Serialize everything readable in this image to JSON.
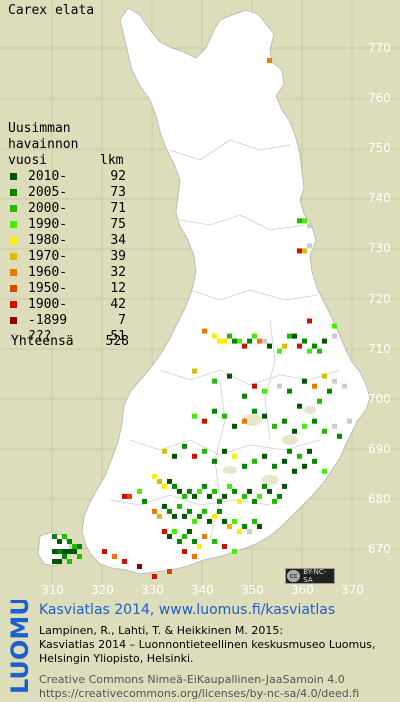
{
  "species": "Carex elata",
  "legend": {
    "header_line1": "Uusimman",
    "header_line2": "havainnon",
    "header_vuosi": "vuosi",
    "header_lkm": "lkm",
    "rows": [
      {
        "label": "2010-",
        "count": "92",
        "color": "#005500"
      },
      {
        "label": "2005-",
        "count": "73",
        "color": "#008800"
      },
      {
        "label": "2000-",
        "count": "71",
        "color": "#22bb00"
      },
      {
        "label": "1990-",
        "count": "75",
        "color": "#44ee00"
      },
      {
        "label": "1980-",
        "count": "34",
        "color": "#ffee00"
      },
      {
        "label": "1970-",
        "count": "39",
        "color": "#ddbb00"
      },
      {
        "label": "1960-",
        "count": "32",
        "color": "#ee7700"
      },
      {
        "label": "1950-",
        "count": "12",
        "color": "#dd4400"
      },
      {
        "label": "1900-",
        "count": "42",
        "color": "#cc1100"
      },
      {
        "label": "-1899",
        "count": "7",
        "color": "#880000"
      },
      {
        "label": "???",
        "count": "51",
        "color": "#cccccc"
      }
    ],
    "total_label": "Yhteensä",
    "total_count": "528"
  },
  "axis": {
    "y_ticks": [
      "770",
      "760",
      "750",
      "740",
      "730",
      "720",
      "710",
      "700",
      "690",
      "680",
      "670"
    ],
    "x_ticks": [
      "310",
      "320",
      "330",
      "340",
      "350",
      "360",
      "370"
    ]
  },
  "cc_badge": "BY-NC-SA",
  "logo_text": "LUOMUS",
  "footer": {
    "line1": "Kasviatlas 2014, www.luomus.fi/kasviatlas",
    "line2": "Lampinen, R., Lahti, T. & Heikkinen M. 2015:",
    "line3": "Kasviatlas 2014 – Luonnontieteellinen keskusmuseo Luomus,",
    "line4": "Helsingin Yliopisto, Helsinki.",
    "line5": "Creative Commons Nimeä-EiKaupallinen-JaaSamoin 4.0",
    "line6": "https://creativecommons.org/licenses/by-nc-sa/4.0/deed.fi"
  },
  "colors": {
    "background": "#ddddbb",
    "land": "#ffffff",
    "footer_title": "#1a5fcc",
    "logo": "#1a5fcc"
  },
  "records": [
    {
      "e": 353,
      "n": 768,
      "c": 6
    },
    {
      "e": 359,
      "n": 736,
      "c": 2
    },
    {
      "e": 360,
      "n": 736,
      "c": 3
    },
    {
      "e": 361,
      "n": 735,
      "c": 10
    },
    {
      "e": 359,
      "n": 730,
      "c": 8
    },
    {
      "e": 360,
      "n": 730,
      "c": 5
    },
    {
      "e": 361,
      "n": 731,
      "c": 10
    },
    {
      "e": 340,
      "n": 714,
      "c": 6
    },
    {
      "e": 342,
      "n": 713,
      "c": 4
    },
    {
      "e": 343,
      "n": 712,
      "c": 4
    },
    {
      "e": 344,
      "n": 712,
      "c": 4
    },
    {
      "e": 345,
      "n": 713,
      "c": 2
    },
    {
      "e": 346,
      "n": 712,
      "c": 1
    },
    {
      "e": 347,
      "n": 712,
      "c": 3
    },
    {
      "e": 348,
      "n": 711,
      "c": 8
    },
    {
      "e": 349,
      "n": 712,
      "c": 1
    },
    {
      "e": 350,
      "n": 713,
      "c": 3
    },
    {
      "e": 351,
      "n": 712,
      "c": 6
    },
    {
      "e": 352,
      "n": 712,
      "c": 10
    },
    {
      "e": 353,
      "n": 711,
      "c": 0
    },
    {
      "e": 355,
      "n": 710,
      "c": 3
    },
    {
      "e": 356,
      "n": 711,
      "c": 5
    },
    {
      "e": 357,
      "n": 713,
      "c": 2
    },
    {
      "e": 358,
      "n": 713,
      "c": 0
    },
    {
      "e": 359,
      "n": 711,
      "c": 8
    },
    {
      "e": 360,
      "n": 712,
      "c": 1
    },
    {
      "e": 361,
      "n": 710,
      "c": 3
    },
    {
      "e": 362,
      "n": 711,
      "c": 1
    },
    {
      "e": 363,
      "n": 710,
      "c": 2
    },
    {
      "e": 364,
      "n": 712,
      "c": 0
    },
    {
      "e": 366,
      "n": 713,
      "c": 10
    },
    {
      "e": 361,
      "n": 716,
      "c": 8
    },
    {
      "e": 366,
      "n": 715,
      "c": 3
    },
    {
      "e": 338,
      "n": 706,
      "c": 5
    },
    {
      "e": 342,
      "n": 704,
      "c": 2
    },
    {
      "e": 345,
      "n": 705,
      "c": 0
    },
    {
      "e": 348,
      "n": 701,
      "c": 1
    },
    {
      "e": 350,
      "n": 703,
      "c": 8
    },
    {
      "e": 352,
      "n": 702,
      "c": 3
    },
    {
      "e": 355,
      "n": 703,
      "c": 10
    },
    {
      "e": 357,
      "n": 702,
      "c": 1
    },
    {
      "e": 360,
      "n": 704,
      "c": 0
    },
    {
      "e": 362,
      "n": 703,
      "c": 6
    },
    {
      "e": 364,
      "n": 705,
      "c": 5
    },
    {
      "e": 366,
      "n": 704,
      "c": 10
    },
    {
      "e": 368,
      "n": 703,
      "c": 10
    },
    {
      "e": 365,
      "n": 702,
      "c": 1
    },
    {
      "e": 363,
      "n": 700,
      "c": 2
    },
    {
      "e": 359,
      "n": 699,
      "c": 0
    },
    {
      "e": 338,
      "n": 697,
      "c": 3
    },
    {
      "e": 340,
      "n": 696,
      "c": 8
    },
    {
      "e": 342,
      "n": 698,
      "c": 1
    },
    {
      "e": 344,
      "n": 697,
      "c": 2
    },
    {
      "e": 346,
      "n": 695,
      "c": 0
    },
    {
      "e": 348,
      "n": 696,
      "c": 6
    },
    {
      "e": 350,
      "n": 698,
      "c": 1
    },
    {
      "e": 352,
      "n": 697,
      "c": 0
    },
    {
      "e": 354,
      "n": 695,
      "c": 2
    },
    {
      "e": 356,
      "n": 696,
      "c": 1
    },
    {
      "e": 358,
      "n": 694,
      "c": 0
    },
    {
      "e": 360,
      "n": 695,
      "c": 3
    },
    {
      "e": 362,
      "n": 696,
      "c": 1
    },
    {
      "e": 364,
      "n": 694,
      "c": 2
    },
    {
      "e": 366,
      "n": 695,
      "c": 10
    },
    {
      "e": 369,
      "n": 696,
      "c": 10
    },
    {
      "e": 367,
      "n": 693,
      "c": 1
    },
    {
      "e": 332,
      "n": 690,
      "c": 5
    },
    {
      "e": 334,
      "n": 689,
      "c": 0
    },
    {
      "e": 336,
      "n": 691,
      "c": 1
    },
    {
      "e": 338,
      "n": 689,
      "c": 8
    },
    {
      "e": 340,
      "n": 690,
      "c": 2
    },
    {
      "e": 342,
      "n": 688,
      "c": 1
    },
    {
      "e": 344,
      "n": 690,
      "c": 0
    },
    {
      "e": 346,
      "n": 689,
      "c": 4
    },
    {
      "e": 348,
      "n": 687,
      "c": 1
    },
    {
      "e": 350,
      "n": 688,
      "c": 2
    },
    {
      "e": 352,
      "n": 689,
      "c": 0
    },
    {
      "e": 354,
      "n": 687,
      "c": 1
    },
    {
      "e": 356,
      "n": 688,
      "c": 0
    },
    {
      "e": 358,
      "n": 686,
      "c": 0
    },
    {
      "e": 360,
      "n": 687,
      "c": 0
    },
    {
      "e": 362,
      "n": 688,
      "c": 1
    },
    {
      "e": 364,
      "n": 686,
      "c": 3
    },
    {
      "e": 357,
      "n": 690,
      "c": 1
    },
    {
      "e": 359,
      "n": 689,
      "c": 2
    },
    {
      "e": 361,
      "n": 690,
      "c": 0
    },
    {
      "e": 330,
      "n": 685,
      "c": 4
    },
    {
      "e": 331,
      "n": 684,
      "c": 5
    },
    {
      "e": 332,
      "n": 683,
      "c": 4
    },
    {
      "e": 333,
      "n": 684,
      "c": 0
    },
    {
      "e": 334,
      "n": 683,
      "c": 1
    },
    {
      "e": 335,
      "n": 682,
      "c": 0
    },
    {
      "e": 336,
      "n": 681,
      "c": 2
    },
    {
      "e": 337,
      "n": 682,
      "c": 1
    },
    {
      "e": 338,
      "n": 681,
      "c": 0
    },
    {
      "e": 339,
      "n": 682,
      "c": 3
    },
    {
      "e": 340,
      "n": 683,
      "c": 1
    },
    {
      "e": 341,
      "n": 681,
      "c": 0
    },
    {
      "e": 342,
      "n": 682,
      "c": 2
    },
    {
      "e": 343,
      "n": 680,
      "c": 1
    },
    {
      "e": 344,
      "n": 681,
      "c": 0
    },
    {
      "e": 345,
      "n": 683,
      "c": 3
    },
    {
      "e": 346,
      "n": 682,
      "c": 1
    },
    {
      "e": 347,
      "n": 680,
      "c": 4
    },
    {
      "e": 348,
      "n": 681,
      "c": 2
    },
    {
      "e": 349,
      "n": 682,
      "c": 0
    },
    {
      "e": 350,
      "n": 680,
      "c": 1
    },
    {
      "e": 351,
      "n": 681,
      "c": 3
    },
    {
      "e": 352,
      "n": 683,
      "c": 1
    },
    {
      "e": 353,
      "n": 682,
      "c": 0
    },
    {
      "e": 354,
      "n": 680,
      "c": 2
    },
    {
      "e": 355,
      "n": 681,
      "c": 1
    },
    {
      "e": 356,
      "n": 683,
      "c": 0
    },
    {
      "e": 324,
      "n": 681,
      "c": 8
    },
    {
      "e": 325,
      "n": 681,
      "c": 7
    },
    {
      "e": 327,
      "n": 682,
      "c": 3
    },
    {
      "e": 328,
      "n": 680,
      "c": 1
    },
    {
      "e": 330,
      "n": 678,
      "c": 6
    },
    {
      "e": 331,
      "n": 677,
      "c": 5
    },
    {
      "e": 332,
      "n": 679,
      "c": 0
    },
    {
      "e": 333,
      "n": 678,
      "c": 1
    },
    {
      "e": 334,
      "n": 677,
      "c": 0
    },
    {
      "e": 335,
      "n": 679,
      "c": 2
    },
    {
      "e": 336,
      "n": 677,
      "c": 0
    },
    {
      "e": 337,
      "n": 678,
      "c": 1
    },
    {
      "e": 338,
      "n": 676,
      "c": 3
    },
    {
      "e": 339,
      "n": 677,
      "c": 1
    },
    {
      "e": 340,
      "n": 678,
      "c": 2
    },
    {
      "e": 341,
      "n": 676,
      "c": 0
    },
    {
      "e": 342,
      "n": 677,
      "c": 4
    },
    {
      "e": 343,
      "n": 678,
      "c": 1
    },
    {
      "e": 344,
      "n": 676,
      "c": 0
    },
    {
      "e": 345,
      "n": 675,
      "c": 5
    },
    {
      "e": 346,
      "n": 676,
      "c": 3
    },
    {
      "e": 347,
      "n": 674,
      "c": 4
    },
    {
      "e": 348,
      "n": 675,
      "c": 1
    },
    {
      "e": 349,
      "n": 674,
      "c": 10
    },
    {
      "e": 350,
      "n": 676,
      "c": 2
    },
    {
      "e": 351,
      "n": 675,
      "c": 0
    },
    {
      "e": 332,
      "n": 674,
      "c": 8
    },
    {
      "e": 333,
      "n": 673,
      "c": 0
    },
    {
      "e": 334,
      "n": 674,
      "c": 3
    },
    {
      "e": 335,
      "n": 672,
      "c": 1
    },
    {
      "e": 336,
      "n": 673,
      "c": 2
    },
    {
      "e": 337,
      "n": 674,
      "c": 0
    },
    {
      "e": 338,
      "n": 672,
      "c": 1
    },
    {
      "e": 339,
      "n": 671,
      "c": 4
    },
    {
      "e": 340,
      "n": 673,
      "c": 6
    },
    {
      "e": 342,
      "n": 672,
      "c": 2
    },
    {
      "e": 344,
      "n": 671,
      "c": 8
    },
    {
      "e": 346,
      "n": 670,
      "c": 3
    },
    {
      "e": 336,
      "n": 670,
      "c": 8
    },
    {
      "e": 338,
      "n": 669,
      "c": 6
    },
    {
      "e": 320,
      "n": 670,
      "c": 8
    },
    {
      "e": 322,
      "n": 669,
      "c": 6
    },
    {
      "e": 324,
      "n": 668,
      "c": 8
    },
    {
      "e": 327,
      "n": 667,
      "c": 9
    },
    {
      "e": 330,
      "n": 665,
      "c": 8
    },
    {
      "e": 333,
      "n": 666,
      "c": 7
    },
    {
      "e": 310,
      "n": 673,
      "c": 1
    },
    {
      "e": 311,
      "n": 672,
      "c": 0
    },
    {
      "e": 312,
      "n": 673,
      "c": 2
    },
    {
      "e": 313,
      "n": 672,
      "c": 1
    },
    {
      "e": 312,
      "n": 670,
      "c": 0
    },
    {
      "e": 311,
      "n": 670,
      "c": 1
    },
    {
      "e": 310,
      "n": 670,
      "c": 0
    },
    {
      "e": 313,
      "n": 670,
      "c": 0
    },
    {
      "e": 314,
      "n": 671,
      "c": 2
    },
    {
      "e": 312,
      "n": 669,
      "c": 1
    },
    {
      "e": 311,
      "n": 668,
      "c": 0
    },
    {
      "e": 313,
      "n": 668,
      "c": 2
    },
    {
      "e": 314,
      "n": 670,
      "c": 0
    },
    {
      "e": 315,
      "n": 671,
      "c": 1
    },
    {
      "e": 310,
      "n": 668,
      "c": 0
    },
    {
      "e": 315,
      "n": 669,
      "c": 2
    }
  ]
}
